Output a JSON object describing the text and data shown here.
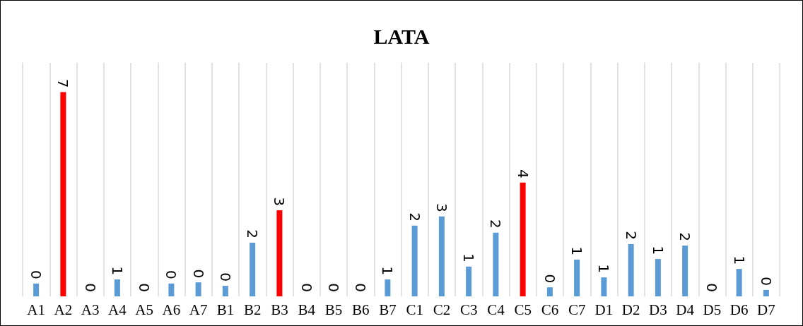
{
  "chart_data": {
    "type": "bar",
    "title": "LATA",
    "categories": [
      "A1",
      "A2",
      "A3",
      "A4",
      "A5",
      "A6",
      "A7",
      "B1",
      "B2",
      "B3",
      "B4",
      "B5",
      "B6",
      "B7",
      "C1",
      "C2",
      "C3",
      "C4",
      "C5",
      "C6",
      "C7",
      "D1",
      "D2",
      "D3",
      "D4",
      "D5",
      "D6",
      "D7"
    ],
    "values": [
      0.44,
      7,
      0,
      0.58,
      0,
      0.44,
      0.48,
      0.36,
      1.84,
      2.95,
      0,
      0,
      0,
      0.58,
      2.42,
      2.74,
      1.02,
      2.18,
      3.9,
      0.31,
      1.26,
      0.65,
      1.79,
      1.28,
      1.74,
      0,
      0.94,
      0.22
    ],
    "value_labels": [
      "0",
      "7",
      "0",
      "1",
      "0",
      "0",
      "0",
      "0",
      "2",
      "3",
      "0",
      "0",
      "0",
      "1",
      "2",
      "3",
      "1",
      "2",
      "4",
      "0",
      "1",
      "1",
      "2",
      "1",
      "2",
      "0",
      "1",
      "0"
    ],
    "colors": [
      "#5b9bd5",
      "#ff0000",
      "#5b9bd5",
      "#5b9bd5",
      "#5b9bd5",
      "#5b9bd5",
      "#5b9bd5",
      "#5b9bd5",
      "#5b9bd5",
      "#ff0000",
      "#5b9bd5",
      "#5b9bd5",
      "#5b9bd5",
      "#5b9bd5",
      "#5b9bd5",
      "#5b9bd5",
      "#5b9bd5",
      "#5b9bd5",
      "#ff0000",
      "#5b9bd5",
      "#5b9bd5",
      "#5b9bd5",
      "#5b9bd5",
      "#5b9bd5",
      "#5b9bd5",
      "#5b9bd5",
      "#5b9bd5",
      "#5b9bd5"
    ],
    "ylim": [
      0,
      8
    ],
    "grid": "x",
    "tick_labels": "x"
  }
}
